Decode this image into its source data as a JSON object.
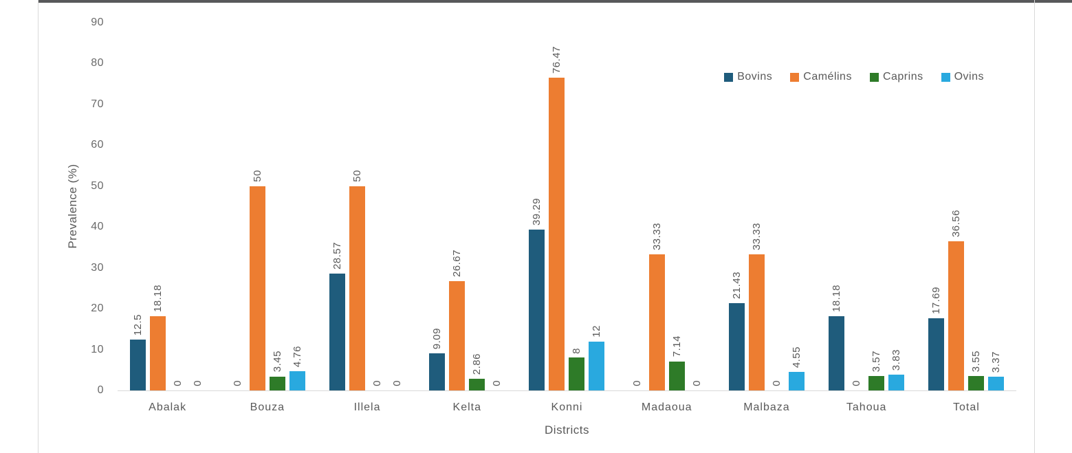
{
  "chart_data": {
    "type": "bar",
    "title": "",
    "xlabel": "Districts",
    "ylabel": "Prevalence (%)",
    "ylim": [
      0,
      90
    ],
    "ytick_step": 10,
    "grid": false,
    "legend_position": "top-right",
    "data_labels": "rotated-vertical-above-bars",
    "categories": [
      "Abalak",
      "Bouza",
      "Illela",
      "Kelta",
      "Konni",
      "Madaoua",
      "Malbaza",
      "Tahoua",
      "Total"
    ],
    "series": [
      {
        "name": "Bovins",
        "color": "#1F5C7C",
        "values": [
          12.5,
          0,
          28.57,
          9.09,
          39.29,
          0,
          21.43,
          18.18,
          17.69
        ]
      },
      {
        "name": "Camélins",
        "color": "#ED7D31",
        "values": [
          18.18,
          50,
          50,
          26.67,
          76.47,
          33.33,
          33.33,
          0,
          36.56
        ]
      },
      {
        "name": "Caprins",
        "color": "#2E7B28",
        "values": [
          0,
          3.45,
          0,
          2.86,
          8,
          7.14,
          0,
          3.57,
          3.55
        ]
      },
      {
        "name": "Ovins",
        "color": "#29A9DF",
        "values": [
          0,
          4.76,
          0,
          0,
          12,
          0,
          4.55,
          3.83,
          3.37
        ]
      }
    ]
  },
  "colors": {
    "axis_line": "#D9D9D9",
    "frame_border": "#D9D9D9",
    "top_border": "#58595B",
    "label_text": "#595959",
    "tick_text": "#696969"
  }
}
